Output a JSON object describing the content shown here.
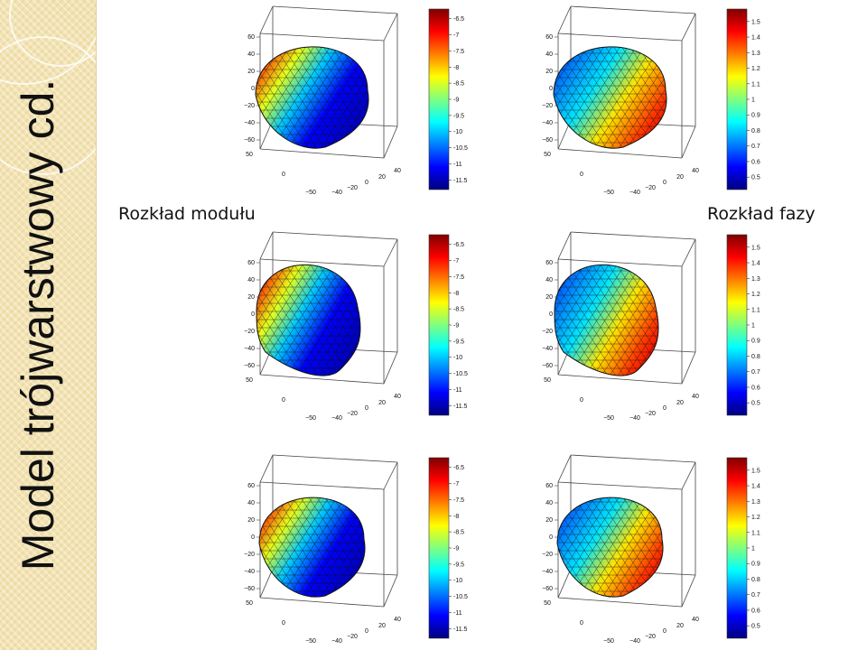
{
  "slide": {
    "title": "Model trójwarstwowy cd.",
    "label_left": "Rozkład modułu",
    "label_right": "Rozkład fazy"
  },
  "axes": {
    "z_ticks": [
      "60",
      "40",
      "20",
      "0",
      "−20",
      "−40",
      "−60"
    ],
    "depth_ticks": [
      "50",
      "0",
      "−50"
    ],
    "x_ticks": [
      "−40",
      "−20",
      "0",
      "20",
      "40"
    ]
  },
  "colorbars": {
    "modulus": {
      "ticks": [
        "-6.5",
        "-7",
        "-7.5",
        "-8",
        "-8.5",
        "-9",
        "-9.5",
        "-10",
        "-10.5",
        "-11",
        "-11.5"
      ],
      "range": [
        -11.8,
        -6.2
      ]
    },
    "phase": {
      "ticks": [
        "1.5",
        "1.4",
        "1.3",
        "1.2",
        "1.1",
        "1",
        "0.9",
        "0.8",
        "0.7",
        "0.6",
        "0.5"
      ],
      "range": [
        0.42,
        1.58
      ]
    }
  },
  "colors": {
    "jet": [
      "#00007f",
      "#0000ff",
      "#007fff",
      "#00ffff",
      "#7fff7f",
      "#ffff00",
      "#ff7f00",
      "#ff0000",
      "#7f0000"
    ]
  },
  "panels": [
    {
      "name": "modulus-top",
      "kind": "modulus",
      "view": "top",
      "hot": "left"
    },
    {
      "name": "phase-top",
      "kind": "phase",
      "view": "top",
      "hot": "right"
    },
    {
      "name": "modulus-middle",
      "kind": "modulus",
      "view": "front",
      "hot": "left"
    },
    {
      "name": "phase-middle",
      "kind": "phase",
      "view": "front",
      "hot": "right"
    },
    {
      "name": "modulus-bottom",
      "kind": "modulus",
      "view": "side",
      "hot": "left"
    },
    {
      "name": "phase-bottom",
      "kind": "phase",
      "view": "side",
      "hot": "right"
    }
  ]
}
